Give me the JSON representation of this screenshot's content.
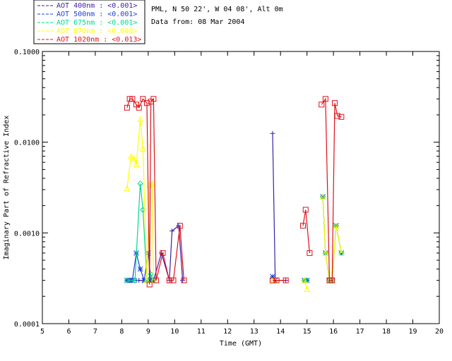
{
  "header": {
    "site_line": "PML, N 50 22', W 04 08', Alt 0m",
    "date_line": "Data from: 08 Mar 2004"
  },
  "chart_data": {
    "type": "line",
    "xlabel": "Time (GMT)",
    "ylabel": "Imaginary Part of Refractive Index",
    "xlim": [
      5,
      20
    ],
    "ylim": [
      0.0001,
      0.1
    ],
    "y_scale": "log",
    "x_ticks": [
      5,
      6,
      7,
      8,
      9,
      10,
      11,
      12,
      13,
      14,
      15,
      16,
      17,
      18,
      19,
      20
    ],
    "x_tick_labels": [
      "5",
      "6",
      "7",
      "8",
      "9",
      "10",
      "11",
      "12",
      "13",
      "14",
      "15",
      "16",
      "17",
      "18",
      "19",
      "20"
    ],
    "y_ticks": [
      0.0001,
      0.001,
      0.01,
      0.1
    ],
    "y_tick_labels": [
      "0.0001",
      "0.0010",
      "0.0100",
      "0.1000"
    ],
    "legend_position": "top-left, above plot",
    "series": [
      {
        "name": "AOT  400nm : <0.001>",
        "color": "#3b1fa8",
        "marker": "plus",
        "segments": [
          [
            [
              8.25,
              0.0003
            ],
            [
              8.35,
              0.0003
            ],
            [
              8.45,
              0.0003
            ],
            [
              8.55,
              0.0003
            ],
            [
              8.65,
              0.0003
            ],
            [
              8.8,
              0.0003
            ],
            [
              9.0,
              0.0003
            ],
            [
              9.1,
              0.0003
            ],
            [
              9.2,
              0.0003
            ],
            [
              9.5,
              0.0006
            ],
            [
              9.8,
              0.0003
            ],
            [
              9.9,
              0.00105
            ],
            [
              10.15,
              0.0012
            ],
            [
              10.3,
              0.0003
            ]
          ],
          [
            [
              13.7,
              0.0125
            ],
            [
              13.8,
              0.0003
            ],
            [
              14.2,
              0.0003
            ]
          ]
        ]
      },
      {
        "name": "AOT  500nm : <0.001>",
        "color": "#1f3fd6",
        "marker": "asterisk",
        "segments": [
          [
            [
              8.2,
              0.0003
            ],
            [
              8.3,
              0.0003
            ],
            [
              8.4,
              0.0003
            ],
            [
              8.55,
              0.0006
            ],
            [
              8.7,
              0.0004
            ],
            [
              8.85,
              0.0003
            ],
            [
              9.0,
              0.0006
            ],
            [
              9.1,
              0.0003
            ],
            [
              9.2,
              0.0003
            ]
          ],
          [
            [
              13.7,
              0.00033
            ],
            [
              13.8,
              0.0003
            ]
          ],
          [
            [
              14.9,
              0.0003
            ],
            [
              15.0,
              0.0003
            ]
          ],
          [
            [
              15.6,
              0.0025
            ],
            [
              15.7,
              0.0006
            ],
            [
              15.85,
              0.0003
            ],
            [
              15.95,
              0.0003
            ],
            [
              16.1,
              0.0012
            ],
            [
              16.3,
              0.0006
            ]
          ]
        ]
      },
      {
        "name": "AOT  675nm : <0.001>",
        "color": "#00d890",
        "marker": "diamond",
        "segments": [
          [
            [
              8.2,
              0.0003
            ],
            [
              8.5,
              0.0003
            ],
            [
              8.7,
              0.0035
            ],
            [
              8.8,
              0.0018
            ],
            [
              8.95,
              0.0003
            ],
            [
              9.1,
              0.00035
            ],
            [
              9.2,
              0.0003
            ]
          ],
          [
            [
              14.9,
              0.0003
            ],
            [
              15.0,
              0.0003
            ]
          ],
          [
            [
              15.6,
              0.0025
            ],
            [
              15.7,
              0.0006
            ],
            [
              15.85,
              0.0003
            ],
            [
              15.95,
              0.0003
            ],
            [
              16.1,
              0.0012
            ],
            [
              16.3,
              0.0006
            ]
          ]
        ]
      },
      {
        "name": "AOT  870nm : <0.003>",
        "color": "#ffff00",
        "marker": "triangle",
        "segments": [
          [
            [
              8.2,
              0.0031
            ],
            [
              8.35,
              0.007
            ],
            [
              8.45,
              0.0066
            ],
            [
              8.55,
              0.0057
            ],
            [
              8.7,
              0.018
            ],
            [
              8.8,
              0.0085
            ],
            [
              8.95,
              0.0003
            ],
            [
              9.05,
              0.0034
            ],
            [
              9.15,
              0.0035
            ],
            [
              9.2,
              0.0003
            ]
          ],
          [
            [
              13.7,
              0.0003
            ],
            [
              13.8,
              0.0003
            ]
          ],
          [
            [
              14.9,
              0.0003
            ],
            [
              15.0,
              0.00024
            ]
          ],
          [
            [
              15.6,
              0.0025
            ],
            [
              15.7,
              0.0006
            ],
            [
              15.85,
              0.0003
            ],
            [
              15.95,
              0.0003
            ],
            [
              16.1,
              0.0012
            ],
            [
              16.3,
              0.0006
            ]
          ]
        ]
      },
      {
        "name": "AOT 1020nm : <0.013>",
        "color": "#e0101a",
        "marker": "square",
        "segments": [
          [
            [
              8.2,
              0.024
            ],
            [
              8.3,
              0.03
            ],
            [
              8.4,
              0.03
            ],
            [
              8.55,
              0.026
            ],
            [
              8.65,
              0.024
            ],
            [
              8.8,
              0.03
            ],
            [
              8.95,
              0.027
            ],
            [
              9.05,
              0.00027
            ],
            [
              9.1,
              0.028
            ],
            [
              9.2,
              0.03
            ],
            [
              9.3,
              0.0003
            ],
            [
              9.55,
              0.0006
            ],
            [
              9.8,
              0.0003
            ],
            [
              9.95,
              0.0003
            ],
            [
              10.2,
              0.0012
            ],
            [
              10.35,
              0.0003
            ]
          ],
          [
            [
              13.7,
              0.0003
            ],
            [
              13.85,
              0.0003
            ],
            [
              14.2,
              0.0003
            ]
          ],
          [
            [
              14.85,
              0.0012
            ],
            [
              14.95,
              0.0018
            ],
            [
              15.1,
              0.0006
            ]
          ],
          [
            [
              15.55,
              0.026
            ],
            [
              15.7,
              0.03
            ],
            [
              15.85,
              0.0003
            ],
            [
              15.95,
              0.0003
            ],
            [
              16.05,
              0.027
            ],
            [
              16.15,
              0.0195
            ],
            [
              16.3,
              0.019
            ]
          ]
        ]
      }
    ]
  }
}
